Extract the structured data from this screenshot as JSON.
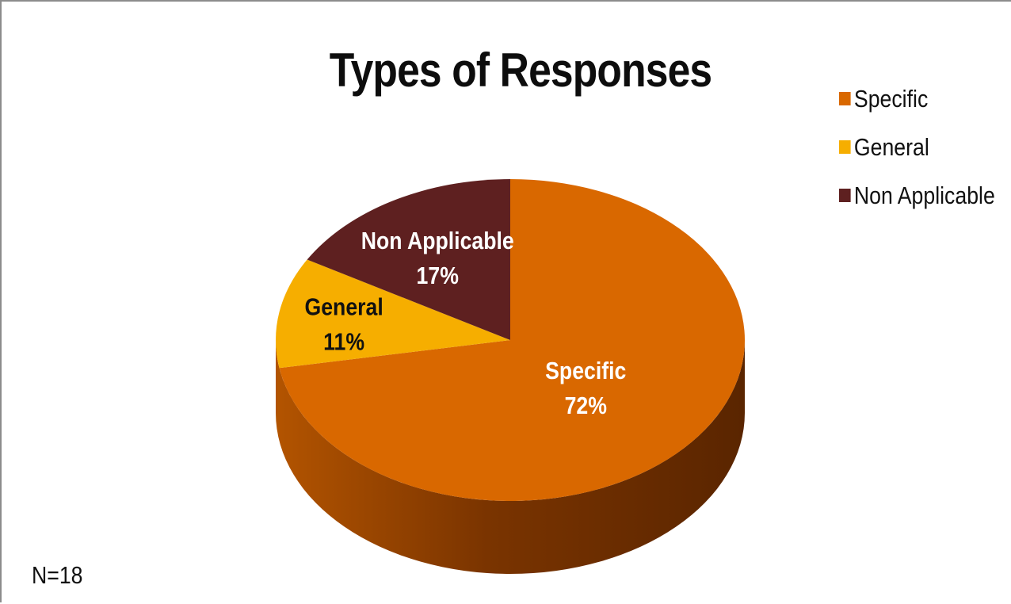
{
  "chart_data": {
    "type": "pie",
    "title": "Types of Responses",
    "note": "N=18",
    "legend_position": "right",
    "slices": [
      {
        "name": "Specific",
        "label_value": "72%",
        "value": 72.22,
        "color": "#D96800",
        "label_color": "#FFFFFF"
      },
      {
        "name": "General",
        "label_value": "11%",
        "value": 11.11,
        "color": "#F6AE00",
        "label_color": "#111111"
      },
      {
        "name": "Non Applicable",
        "label_value": "17%",
        "value": 16.67,
        "color": "#5E2020",
        "label_color": "#FFFFFF"
      }
    ]
  }
}
